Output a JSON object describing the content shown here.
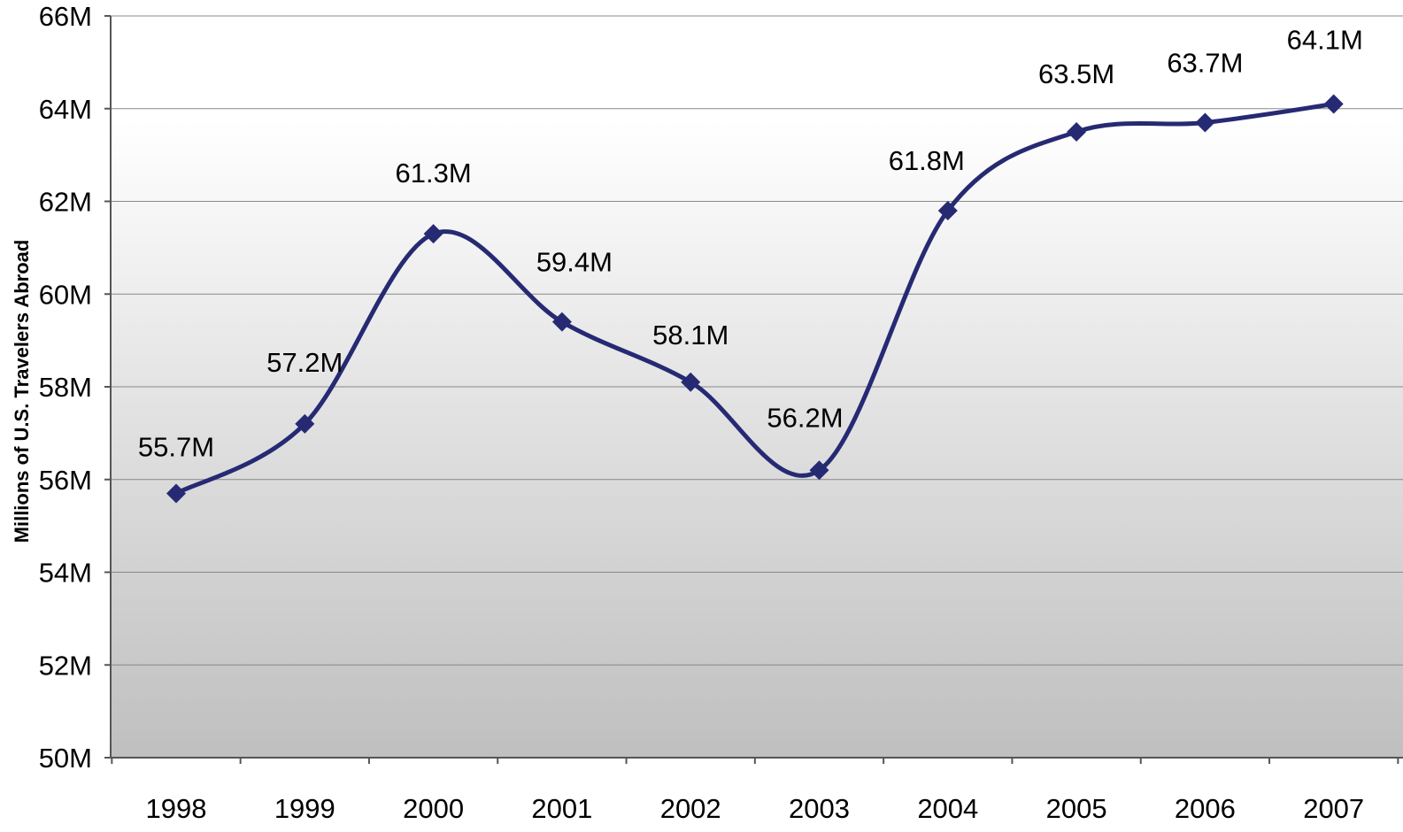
{
  "chart_data": {
    "type": "line",
    "title": "",
    "xlabel": "",
    "ylabel": "Millions of U.S. Travelers Abroad",
    "categories": [
      "1998",
      "1999",
      "2000",
      "2001",
      "2002",
      "2003",
      "2004",
      "2005",
      "2006",
      "2007"
    ],
    "series": [
      {
        "values": [
          55.7,
          57.2,
          61.3,
          59.4,
          58.1,
          56.2,
          61.8,
          63.5,
          63.7,
          64.1
        ],
        "data_labels": [
          "55.7M",
          "57.2M",
          "61.3M",
          "59.4M",
          "58.1M",
          "56.2M",
          "61.8M",
          "63.5M",
          "63.7M",
          "64.1M"
        ],
        "color": "#262a73",
        "marker": "diamond",
        "smooth": true
      }
    ],
    "ylim": [
      50,
      66
    ],
    "yticks": [
      50,
      52,
      54,
      56,
      58,
      60,
      62,
      64,
      66
    ],
    "ytick_labels": [
      "50M",
      "52M",
      "54M",
      "56M",
      "58M",
      "60M",
      "62M",
      "64M",
      "66M"
    ],
    "grid": true,
    "legend": "none",
    "colors": {
      "line": "#262a73",
      "gridline": "#888888",
      "axis": "#555555",
      "background_top": "#ffffff",
      "background_bottom": "#bfbfbf"
    }
  }
}
